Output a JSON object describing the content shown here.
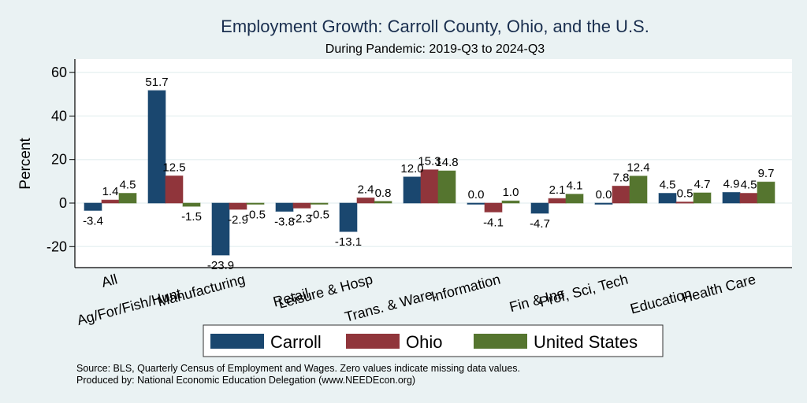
{
  "chart_data": {
    "type": "bar",
    "title": "Employment Growth: Carroll County, Ohio, and the U.S.",
    "subtitle": "During Pandemic: 2019-Q3 to 2024-Q3",
    "xlabel": "",
    "ylabel": "Percent",
    "ylim": [
      -30,
      66
    ],
    "yticks": [
      -20,
      0,
      20,
      40,
      60
    ],
    "grid": true,
    "legend_position": "bottom",
    "categories": [
      "All",
      "Ag/For/Fish/Hunt",
      "Manufacturing",
      "Retail",
      "Leisure & Hosp",
      "Trans. & Ware.",
      "Information",
      "Fin & Ins",
      "Prof, Sci, Tech",
      "Education",
      "Health Care"
    ],
    "series": [
      {
        "name": "Carroll",
        "color": "#1a476f",
        "values": [
          -3.4,
          51.7,
          -23.9,
          -3.8,
          -13.1,
          12.0,
          0.0,
          -4.7,
          0.0,
          4.5,
          4.9
        ],
        "labels": [
          "-3.4",
          "51.7",
          "-23.9",
          "-3.8",
          "-13.1",
          "12.0",
          "0.0",
          "-4.7",
          "0.0",
          "4.5",
          "4.9"
        ]
      },
      {
        "name": "Ohio",
        "color": "#90353b",
        "values": [
          1.4,
          12.5,
          -2.9,
          -2.3,
          2.4,
          15.3,
          -4.1,
          2.1,
          7.8,
          0.5,
          4.5
        ],
        "labels": [
          "1.4",
          "12.5",
          "-2.9",
          "-2.3",
          "2.4",
          "15.3",
          "-4.1",
          "2.1",
          "7.8",
          "0.5",
          "4.5"
        ]
      },
      {
        "name": "United States",
        "color": "#55752f",
        "values": [
          4.5,
          -1.5,
          -0.5,
          -0.5,
          0.8,
          14.8,
          1.0,
          4.1,
          12.4,
          4.7,
          9.7
        ],
        "labels": [
          "4.5",
          "-1.5",
          "-0.5",
          "-0.5",
          "0.8",
          "14.8",
          "1.0",
          "4.1",
          "12.4",
          "4.7",
          "9.7"
        ]
      }
    ],
    "notes": [
      "Source: BLS, Quarterly Census of Employment and Wages. Zero values indicate missing data values.",
      "Produced by: National Economic Education Delegation (www.NEEDEcon.org)"
    ]
  }
}
